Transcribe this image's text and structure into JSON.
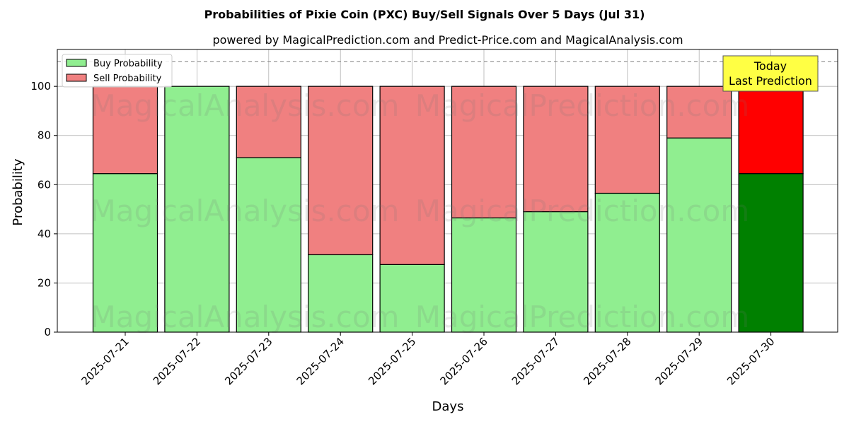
{
  "chart_data": {
    "type": "bar",
    "stacked": true,
    "title": "Probabilities of Pixie Coin (PXC) Buy/Sell Signals Over 5 Days (Jul 31)",
    "subtitle": "powered by MagicalPrediction.com and Predict-Price.com and MagicalAnalysis.com",
    "xlabel": "Days",
    "ylabel": "Probability",
    "ylim": [
      0,
      115
    ],
    "yticks": [
      0,
      20,
      40,
      60,
      80,
      100
    ],
    "reference_line": 110,
    "grid": true,
    "legend_position": "top-left",
    "categories": [
      "2025-07-21",
      "2025-07-22",
      "2025-07-23",
      "2025-07-24",
      "2025-07-25",
      "2025-07-26",
      "2025-07-27",
      "2025-07-28",
      "2025-07-29",
      "2025-07-30"
    ],
    "series": [
      {
        "name": "Buy Probability",
        "color": "#90ee90",
        "highlight_color": "#008000",
        "values": [
          64.5,
          100,
          71,
          31.5,
          27.5,
          46.5,
          49,
          56.5,
          79,
          64.5
        ]
      },
      {
        "name": "Sell Probability",
        "color": "#f08080",
        "highlight_color": "#ff0000",
        "values": [
          35.5,
          0,
          29,
          68.5,
          72.5,
          53.5,
          51,
          43.5,
          21,
          35.5
        ]
      }
    ],
    "highlight_index": 9,
    "annotation": {
      "lines": [
        "Today",
        "Last Prediction"
      ],
      "background": "#ffff44"
    },
    "watermarks": [
      "MagicalAnalysis.com",
      "MagicalPrediction.com"
    ]
  }
}
